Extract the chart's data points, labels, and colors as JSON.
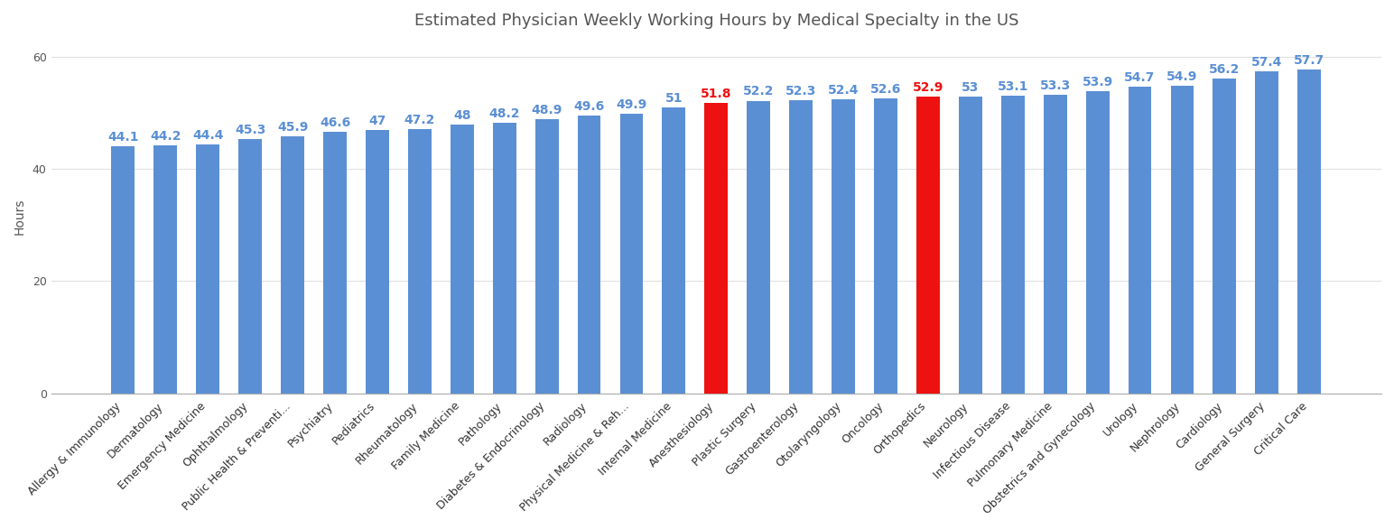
{
  "title": "Estimated Physician Weekly Working Hours by Medical Specialty in the US",
  "categories": [
    "Allergy & Immunology",
    "Dermatology",
    "Emergency Medicine",
    "Ophthalmology",
    "Public Health & Preventi...",
    "Psychiatry",
    "Pediatrics",
    "Rheumatology",
    "Family Medicine",
    "Pathology",
    "Diabetes & Endocrinology",
    "Radiology",
    "Physical Medicine & Reh...",
    "Internal Medicine",
    "Anesthesiology",
    "Plastic Surgery",
    "Gastroenterology",
    "Otolaryngology",
    "Oncology",
    "Orthopedics",
    "Neurology",
    "Infectious Disease",
    "Pulmonary Medicine",
    "Obstetrics and Gynecology",
    "Urology",
    "Nephrology",
    "Cardiology",
    "General Surgery",
    "Critical Care"
  ],
  "values": [
    44.1,
    44.2,
    44.4,
    45.3,
    45.9,
    46.6,
    47.0,
    47.2,
    48.0,
    48.2,
    48.9,
    49.6,
    49.9,
    51.0,
    51.8,
    52.2,
    52.3,
    52.4,
    52.6,
    52.9,
    53.0,
    53.1,
    53.3,
    53.9,
    54.7,
    54.9,
    56.2,
    57.4,
    57.7
  ],
  "bar_colors": [
    "#5B8FD4",
    "#5B8FD4",
    "#5B8FD4",
    "#5B8FD4",
    "#5B8FD4",
    "#5B8FD4",
    "#5B8FD4",
    "#5B8FD4",
    "#5B8FD4",
    "#5B8FD4",
    "#5B8FD4",
    "#5B8FD4",
    "#5B8FD4",
    "#5B8FD4",
    "#EE1111",
    "#5B8FD4",
    "#5B8FD4",
    "#5B8FD4",
    "#5B8FD4",
    "#EE1111",
    "#5B8FD4",
    "#5B8FD4",
    "#5B8FD4",
    "#5B8FD4",
    "#5B8FD4",
    "#5B8FD4",
    "#5B8FD4",
    "#5B8FD4",
    "#5B8FD4"
  ],
  "label_colors": [
    "#5B8FD4",
    "#5B8FD4",
    "#5B8FD4",
    "#5B8FD4",
    "#5B8FD4",
    "#5B8FD4",
    "#5B8FD4",
    "#5B8FD4",
    "#5B8FD4",
    "#5B8FD4",
    "#5B8FD4",
    "#5B8FD4",
    "#5B8FD4",
    "#5B8FD4",
    "#EE1111",
    "#5B8FD4",
    "#5B8FD4",
    "#5B8FD4",
    "#5B8FD4",
    "#EE1111",
    "#5B8FD4",
    "#5B8FD4",
    "#5B8FD4",
    "#5B8FD4",
    "#5B8FD4",
    "#5B8FD4",
    "#5B8FD4",
    "#5B8FD4",
    "#5B8FD4"
  ],
  "ylabel": "Hours",
  "ylim": [
    0,
    63
  ],
  "yticks": [
    0,
    20,
    40,
    60
  ],
  "background_color": "#FFFFFF",
  "grid_color": "#E0E0E0",
  "title_fontsize": 13,
  "label_fontsize": 10,
  "tick_fontsize": 9,
  "bar_width": 0.55
}
